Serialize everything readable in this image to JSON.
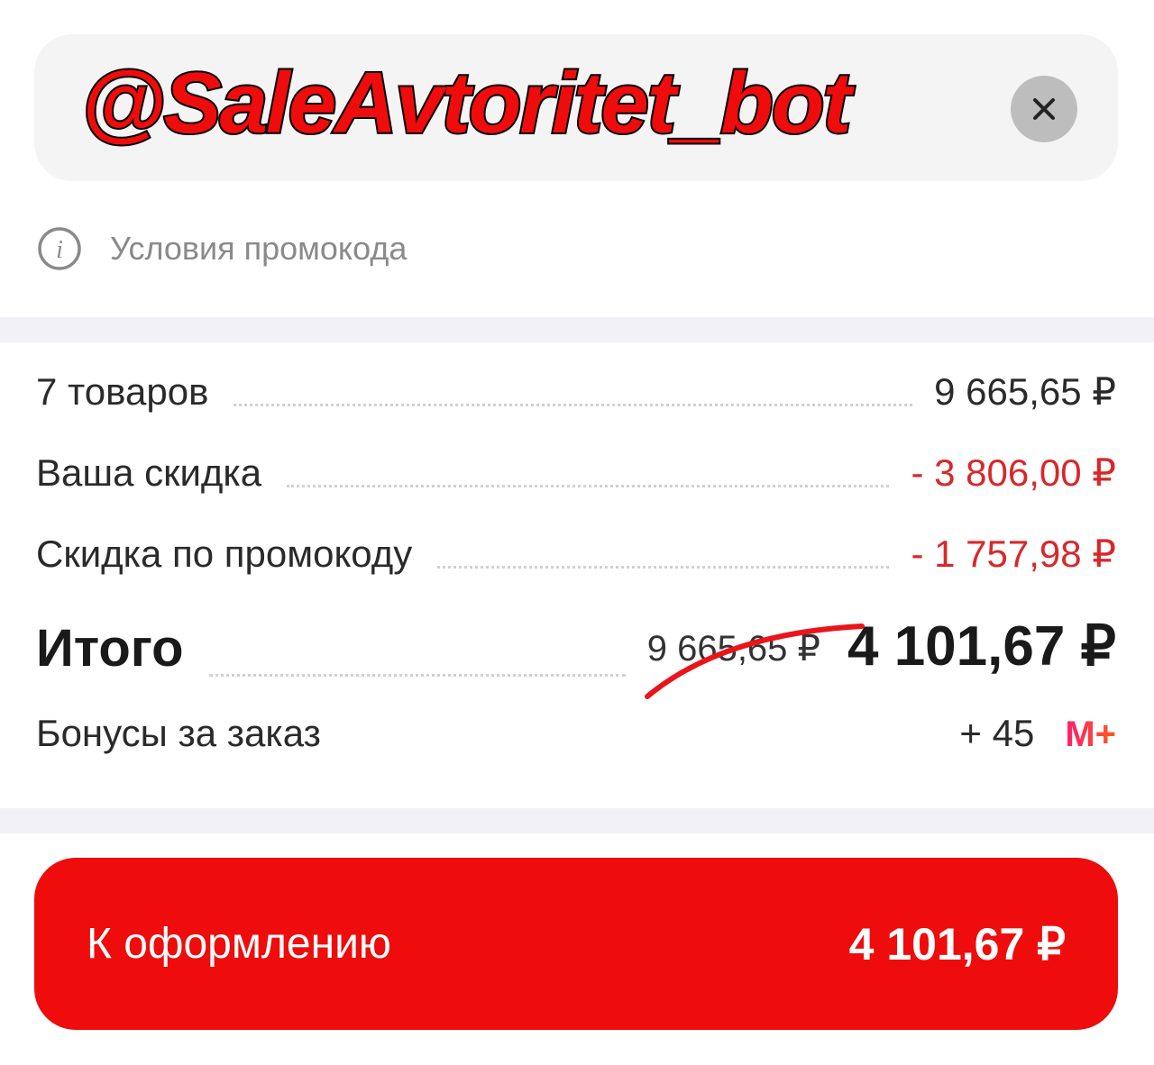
{
  "promo": {
    "value": "@SaleAvtoritet_bot",
    "clear_icon": "close-icon"
  },
  "info": {
    "icon": "info-icon",
    "label": "Условия промокода"
  },
  "summary": {
    "items": {
      "label": "7 товаров",
      "value": "9 665,65 ₽"
    },
    "discount": {
      "label": "Ваша скидка",
      "value": "- 3 806,00 ₽"
    },
    "promo_discount": {
      "label": "Скидка по промокоду",
      "value": "- 1 757,98 ₽"
    },
    "total": {
      "label": "Итого",
      "old_value": "9 665,65 ₽",
      "value": "4 101,67 ₽"
    },
    "bonus": {
      "label": "Бонусы за заказ",
      "value": "+ 45",
      "badge": "M+"
    }
  },
  "checkout": {
    "label": "К оформлению",
    "value": "4 101,67 ₽"
  },
  "colors": {
    "accent": "#ee0c0c",
    "discount": "#d8282a",
    "field_bg": "#f4f4f5"
  }
}
